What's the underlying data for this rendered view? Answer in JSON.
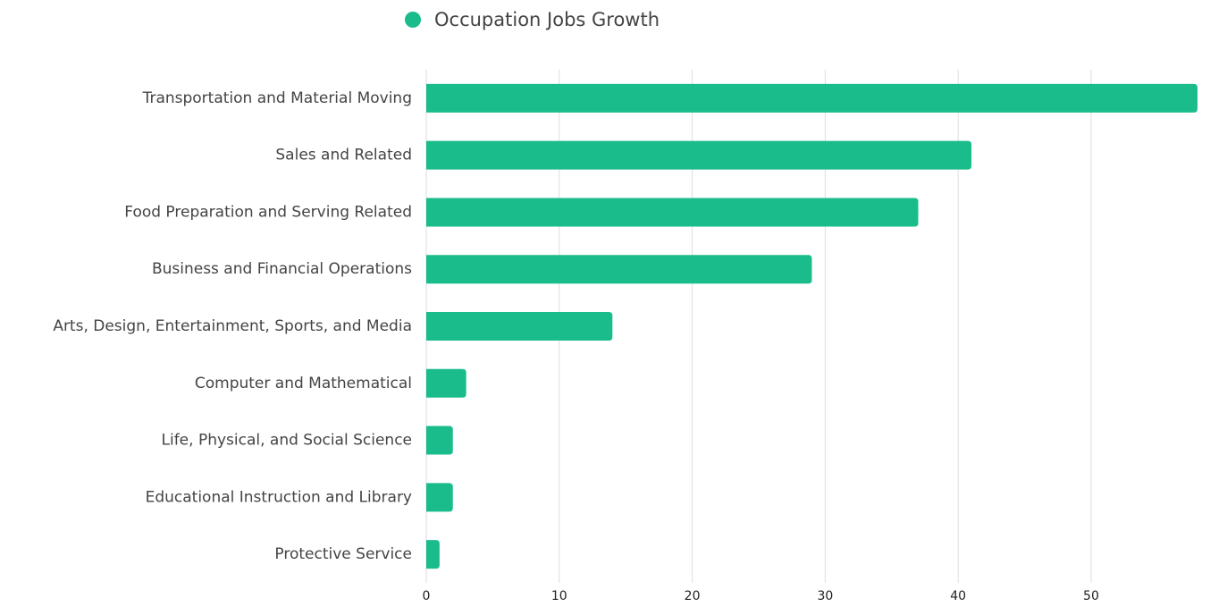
{
  "chart_data": {
    "type": "bar",
    "orientation": "horizontal",
    "legend": "top",
    "series": [
      {
        "name": "Occupation Jobs Growth",
        "color": "#1abc8c",
        "values": [
          58,
          41,
          37,
          29,
          14,
          3,
          2,
          2,
          1
        ]
      }
    ],
    "categories": [
      "Transportation and Material Moving",
      "Sales and Related",
      "Food Preparation and Serving Related",
      "Business and Financial Operations",
      "Arts, Design, Entertainment, Sports, and Media",
      "Computer and Mathematical",
      "Life, Physical, and Social Science",
      "Educational Instruction and Library",
      "Protective Service"
    ],
    "xlim": [
      0,
      58
    ],
    "xticks": [
      0,
      10,
      20,
      30,
      40,
      50
    ],
    "grid": true
  }
}
